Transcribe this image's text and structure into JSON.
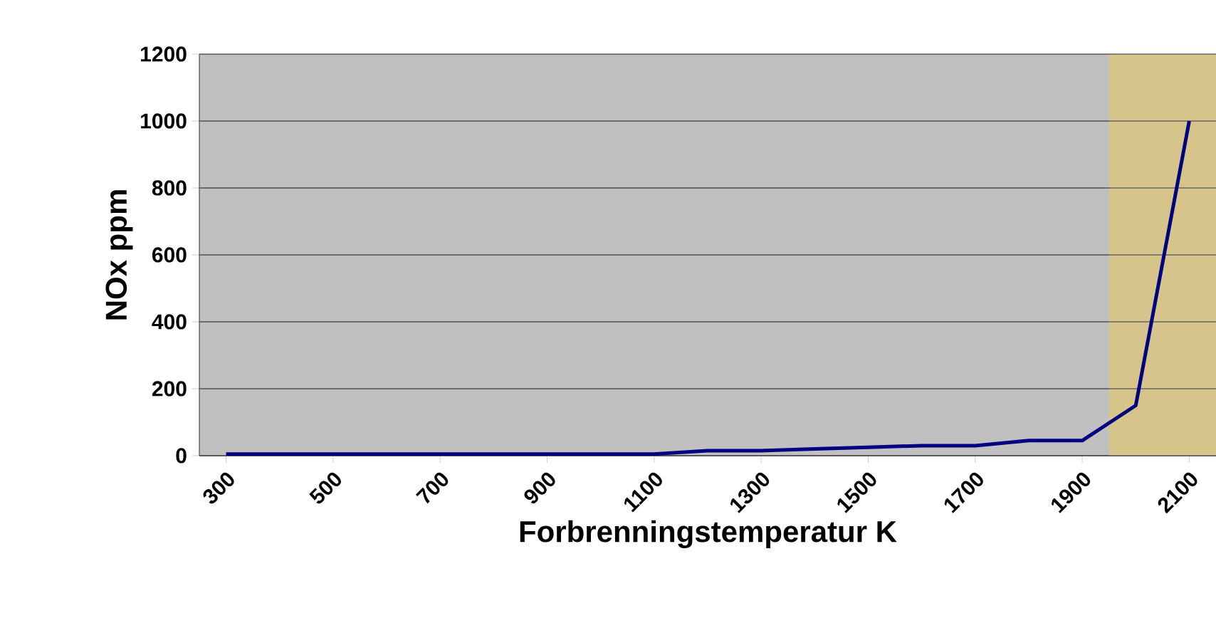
{
  "chart_data": {
    "type": "line",
    "xlabel": "Forbrenningstemperatur K",
    "ylabel": "NOx ppm",
    "x": [
      300,
      400,
      500,
      600,
      700,
      800,
      900,
      1000,
      1100,
      1200,
      1300,
      1400,
      1500,
      1600,
      1700,
      1800,
      1900,
      2000,
      2100
    ],
    "series": [
      {
        "color": "#000080",
        "values": [
          5,
          5,
          5,
          5,
          5,
          5,
          5,
          5,
          5,
          15,
          15,
          20,
          25,
          30,
          30,
          45,
          45,
          150,
          1000
        ]
      }
    ],
    "xlim": [
      250,
      2150
    ],
    "xticks": [
      300,
      500,
      700,
      900,
      1100,
      1300,
      1500,
      1700,
      1900,
      2100
    ],
    "ylim": [
      0,
      1200
    ],
    "yticks": [
      0,
      200,
      400,
      600,
      800,
      1000,
      1200
    ],
    "bands": [
      {
        "axis": "x",
        "from": 1950,
        "to": 2150,
        "color": "#d6c48a"
      }
    ],
    "grid": "y",
    "marker": "none",
    "line_style": "solid"
  }
}
